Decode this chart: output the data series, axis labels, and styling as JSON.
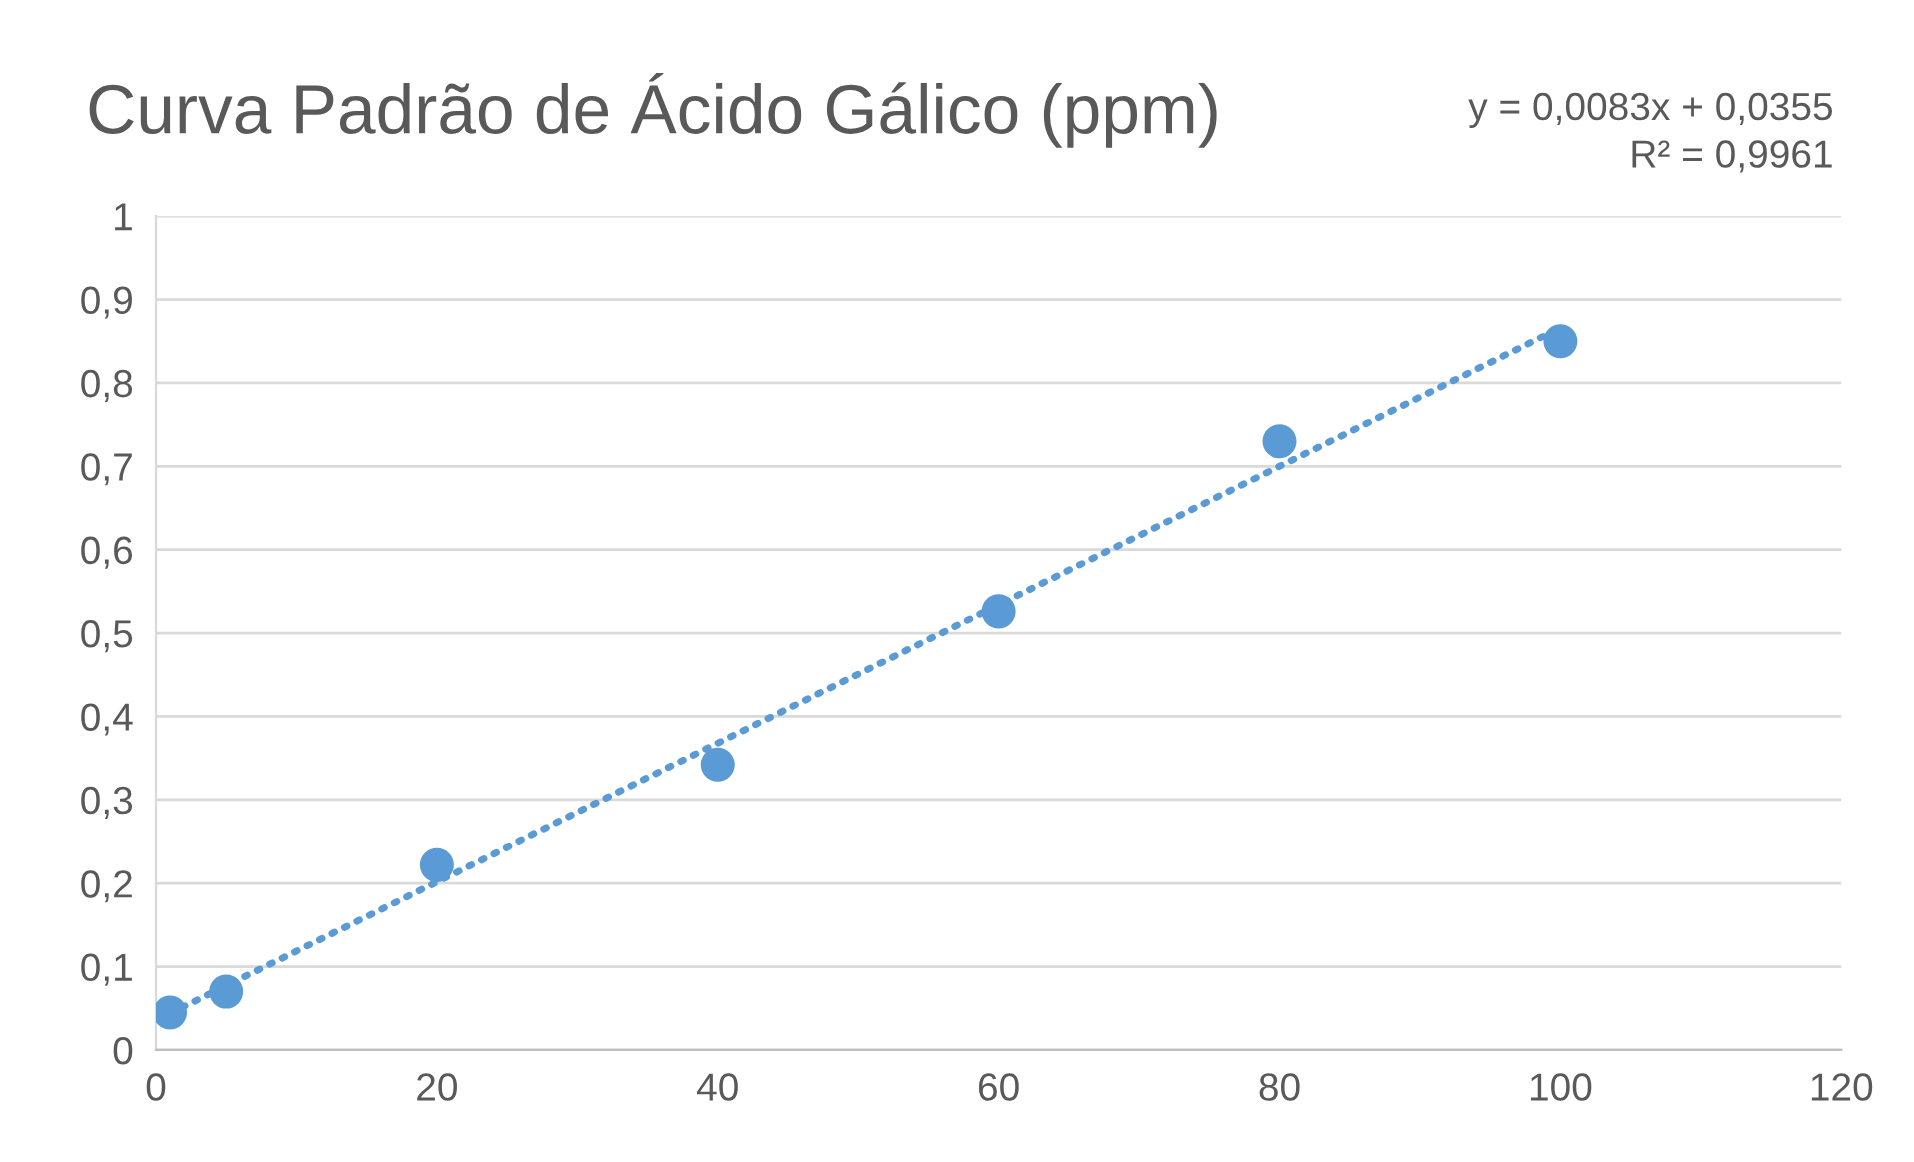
{
  "chart_data": {
    "type": "scatter",
    "title": "Curva Padrão de Ácido Gálico (ppm)",
    "annotations": [
      "y = 0,0083x + 0,0355\nR² = 0,9961"
    ],
    "x": [
      1,
      5,
      20,
      40,
      60,
      80,
      100
    ],
    "series": [
      {
        "color": "#5b9bd5",
        "marker": "circle",
        "values": [
          0.045,
          0.07,
          0.222,
          0.342,
          0.526,
          0.73,
          0.85
        ]
      },
      {
        "type": "line",
        "color": "#5b9bd5",
        "line_style": "dotted",
        "marker": "none",
        "x": [
          1,
          100
        ],
        "values": [
          0.044,
          0.866
        ]
      }
    ],
    "xlim": [
      0,
      120
    ],
    "xticks": [
      0,
      20,
      40,
      60,
      80,
      100,
      120
    ],
    "ylim": [
      0,
      1
    ],
    "yticks": [
      0,
      {
        "value": 0.1,
        "label": "0,1"
      },
      {
        "value": 0.2,
        "label": "0,2"
      },
      {
        "value": 0.3,
        "label": "0,3"
      },
      {
        "value": 0.4,
        "label": "0,4"
      },
      {
        "value": 0.5,
        "label": "0,5"
      },
      {
        "value": 0.6,
        "label": "0,6"
      },
      {
        "value": 0.7,
        "label": "0,7"
      },
      {
        "value": 0.8,
        "label": "0,8"
      },
      {
        "value": 0.9,
        "label": "0,9"
      },
      1
    ],
    "grid": "y",
    "legend": false
  }
}
